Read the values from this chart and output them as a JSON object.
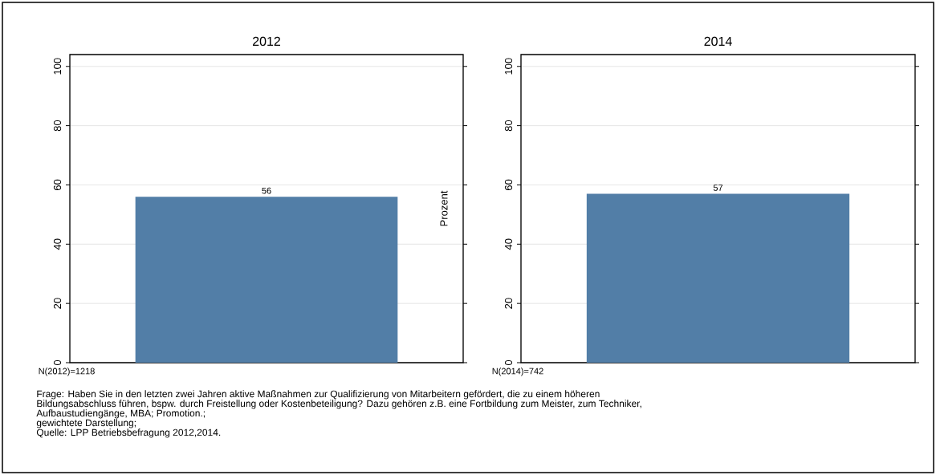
{
  "chart_data": [
    {
      "type": "bar",
      "title": "2012",
      "categories": [
        null
      ],
      "values": [
        56
      ],
      "color": "#527ea7",
      "ylim": [
        0,
        104
      ],
      "yticks": [
        0,
        20,
        40,
        60,
        80,
        100
      ],
      "grid": "y",
      "data_labels": true,
      "annotations": [
        "N(2012)=1218",
        "Frage: Haben Sie in den letzten zwei Jahren aktive Maßnahmen zur Qualifizierung  von Mitarbeitern gefördert, die zu einem höheren",
        "Bildungsabschluss führen, bspw. durch Freistellung oder Kostenbeteiligung? Dazu gehören z.B. eine Fortbildung zum Meister, zum Techniker,",
        "Aufbaustudiengänge, MBA; Promotion.;",
        "gewichtete Darstellung;",
        "Quelle: LPP Betriebsbefragung 2012,2014."
      ]
    },
    {
      "type": "bar",
      "title": "2014",
      "ylabel": "Prozent",
      "categories": [
        null
      ],
      "values": [
        57
      ],
      "color": "#527ea7",
      "ylim": [
        0,
        104
      ],
      "yticks": [
        0,
        20,
        40,
        60,
        80,
        100
      ],
      "grid": "y",
      "data_labels": true,
      "annotations": [
        "N(2014)=742"
      ]
    }
  ]
}
